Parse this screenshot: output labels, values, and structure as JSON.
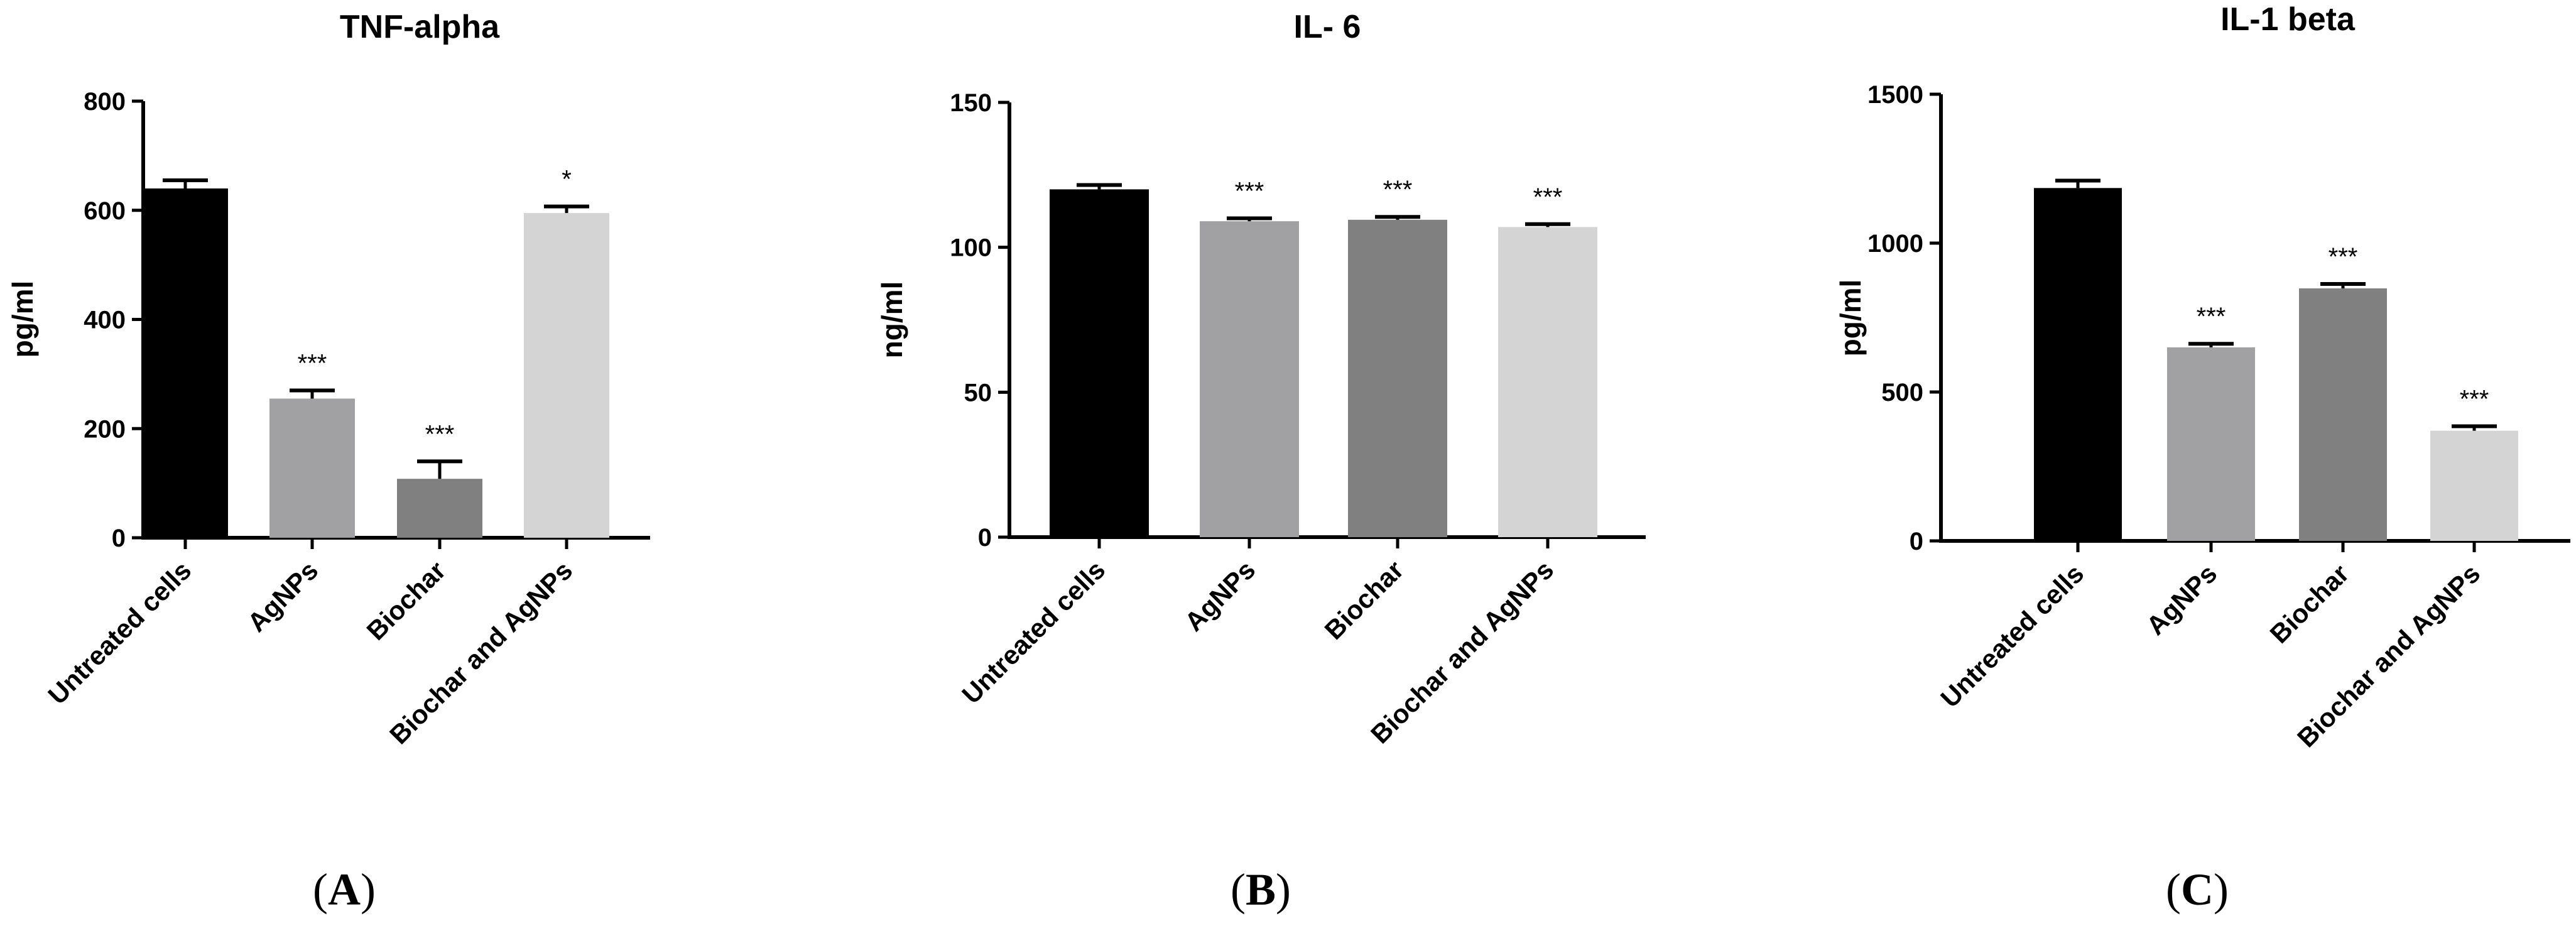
{
  "chart_data": [
    {
      "type": "bar",
      "title": "TNF-alpha",
      "ylabel": "pg/ml",
      "panel_label": "A",
      "ylim": [
        0,
        800
      ],
      "yticks": [
        0,
        200,
        400,
        600,
        800
      ],
      "categories": [
        "Untreated cells",
        "AgNPs",
        "Biochar",
        "Biochar and AgNPs"
      ],
      "values": [
        640,
        255,
        108,
        595
      ],
      "errors": [
        15,
        15,
        32,
        12
      ],
      "significance": [
        "",
        "***",
        "***",
        "*"
      ],
      "colors": [
        "#000000",
        "#a1a1a4",
        "#808080",
        "#d4d4d4"
      ],
      "grid": false
    },
    {
      "type": "bar",
      "title": "IL- 6",
      "ylabel": "ng/ml",
      "panel_label": "B",
      "ylim": [
        0,
        150
      ],
      "yticks": [
        0,
        50,
        100,
        150
      ],
      "categories": [
        "Untreated cells",
        "AgNPs",
        "Biochar",
        "Biochar and AgNPs"
      ],
      "values": [
        120,
        109,
        109.5,
        107
      ],
      "errors": [
        1.5,
        1,
        1,
        1
      ],
      "significance": [
        "",
        "***",
        "***",
        "***"
      ],
      "colors": [
        "#000000",
        "#a1a1a4",
        "#808080",
        "#d4d4d4"
      ],
      "grid": false
    },
    {
      "type": "bar",
      "title": "IL-1 beta",
      "ylabel": "pg/ml",
      "panel_label": "C",
      "ylim": [
        0,
        1500
      ],
      "yticks": [
        0,
        500,
        1000,
        1500
      ],
      "categories": [
        "Untreated cells",
        "AgNPs",
        "Biochar",
        "Biochar and AgNPs"
      ],
      "values": [
        1185,
        650,
        848,
        370
      ],
      "errors": [
        25,
        12,
        15,
        15
      ],
      "significance": [
        "",
        "***",
        "***",
        "***"
      ],
      "colors": [
        "#000000",
        "#a1a1a4",
        "#808080",
        "#d4d4d4"
      ],
      "grid": false
    }
  ]
}
